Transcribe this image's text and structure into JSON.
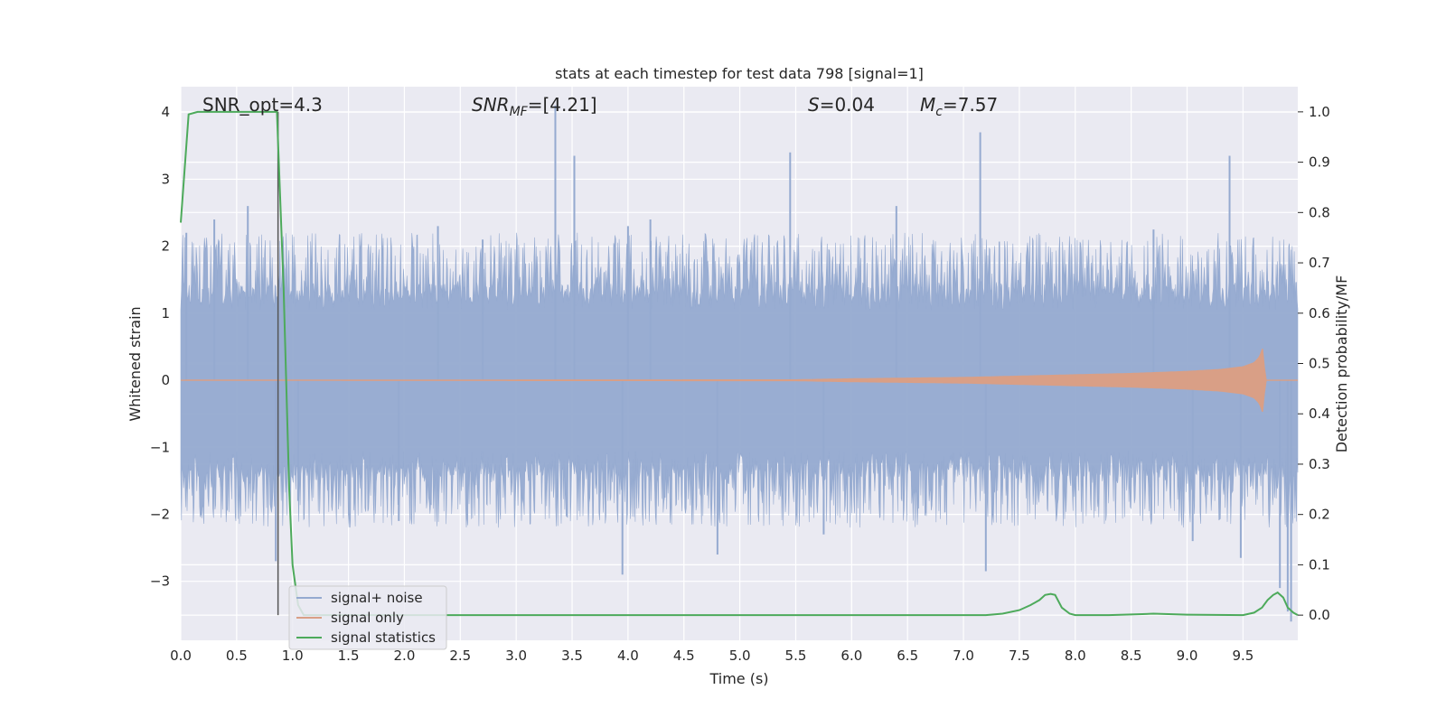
{
  "chart_data": {
    "type": "line",
    "title": "stats at each timestep for test data 798 [signal=1]",
    "xlabel": "Time (s)",
    "ylabel": "Whitened strain",
    "ylabel_right": "Detection probability/MF",
    "xlim": [
      0,
      9.99
    ],
    "ylim": [
      -3.88,
      4.38
    ],
    "ylim_right": [
      -0.05,
      1.05
    ],
    "xticks": [
      "0.0",
      "0.5",
      "1.0",
      "1.5",
      "2.0",
      "2.5",
      "3.0",
      "3.5",
      "4.0",
      "4.5",
      "5.0",
      "5.5",
      "6.0",
      "6.5",
      "7.0",
      "7.5",
      "8.0",
      "8.5",
      "9.0",
      "9.5"
    ],
    "yticks_left": [
      "4",
      "3",
      "2",
      "1",
      "0",
      "−1",
      "−2",
      "−3"
    ],
    "yticks_right": [
      "1.0",
      "0.9",
      "0.8",
      "0.7",
      "0.6",
      "0.5",
      "0.4",
      "0.3",
      "0.2",
      "0.1",
      "0.0"
    ],
    "grid": true,
    "legend_position": "lower-left",
    "annotations": {
      "snr_opt": "SNR_opt=4.3",
      "snr_mf_name": "SNR",
      "snr_mf_sub": "MF",
      "snr_mf_value": "=[4.21]",
      "s_name": "S",
      "s_value": "=0.04",
      "mc_name": "M",
      "mc_sub": "c",
      "mc_value": "=7.57"
    },
    "vertical_marker_x": 0.87,
    "noise_spikes": {
      "x": [
        0.05,
        0.3,
        0.6,
        0.85,
        1.05,
        1.95,
        2.3,
        2.7,
        3.35,
        3.52,
        3.95,
        4.0,
        4.2,
        4.8,
        5.45,
        5.75,
        6.4,
        7.15,
        7.2,
        8.7,
        9.05,
        9.38,
        9.48,
        9.83,
        9.9,
        9.93
      ],
      "y": [
        2.2,
        2.4,
        2.6,
        -2.7,
        -1.8,
        -2.1,
        2.3,
        2.1,
        4.1,
        3.35,
        -2.9,
        2.3,
        2.4,
        -2.6,
        3.4,
        -2.3,
        2.6,
        3.7,
        -2.85,
        2.25,
        -2.4,
        3.35,
        -2.65,
        -3.1,
        -3.45,
        -3.6
      ]
    },
    "series": [
      {
        "name": "signal+ noise",
        "color": "#95aad0",
        "axis": "left",
        "envelope": {
          "inner": 1.05,
          "outer_min": 1.45,
          "outer_max": 2.2
        }
      },
      {
        "name": "signal only",
        "color": "#d99f86",
        "axis": "left",
        "x": [
          0,
          5.5,
          6.0,
          6.5,
          7.0,
          7.5,
          8.0,
          8.5,
          9.0,
          9.3,
          9.5,
          9.6,
          9.65,
          9.68,
          9.69,
          9.7,
          9.99
        ],
        "amplitude": [
          0,
          0.005,
          0.02,
          0.03,
          0.04,
          0.06,
          0.08,
          0.1,
          0.13,
          0.16,
          0.2,
          0.26,
          0.35,
          0.5,
          0.2,
          0,
          0
        ]
      },
      {
        "name": "signal statistics",
        "color": "#4daa5b",
        "axis": "right",
        "x": [
          0,
          0.07,
          0.15,
          0.3,
          0.5,
          0.7,
          0.86,
          0.92,
          0.97,
          1.0,
          1.05,
          1.1,
          1.2,
          1.5,
          3,
          5,
          7,
          7.2,
          7.35,
          7.5,
          7.6,
          7.68,
          7.73,
          7.78,
          7.82,
          7.88,
          7.95,
          8.0,
          8.3,
          8.6,
          8.7,
          9.0,
          9.5,
          9.6,
          9.67,
          9.72,
          9.77,
          9.81,
          9.86,
          9.9,
          9.95,
          9.99
        ],
        "y": [
          0.78,
          0.995,
          1.0,
          1.0,
          1.0,
          1.0,
          1.0,
          0.65,
          0.25,
          0.1,
          0.02,
          0.0,
          0.0,
          0.0,
          0.0,
          0.0,
          0.0,
          0.0,
          0.003,
          0.01,
          0.02,
          0.03,
          0.04,
          0.042,
          0.04,
          0.015,
          0.003,
          0.0,
          0.0,
          0.002,
          0.003,
          0.001,
          0.0,
          0.005,
          0.015,
          0.03,
          0.04,
          0.045,
          0.035,
          0.015,
          0.005,
          0.0
        ]
      }
    ]
  }
}
